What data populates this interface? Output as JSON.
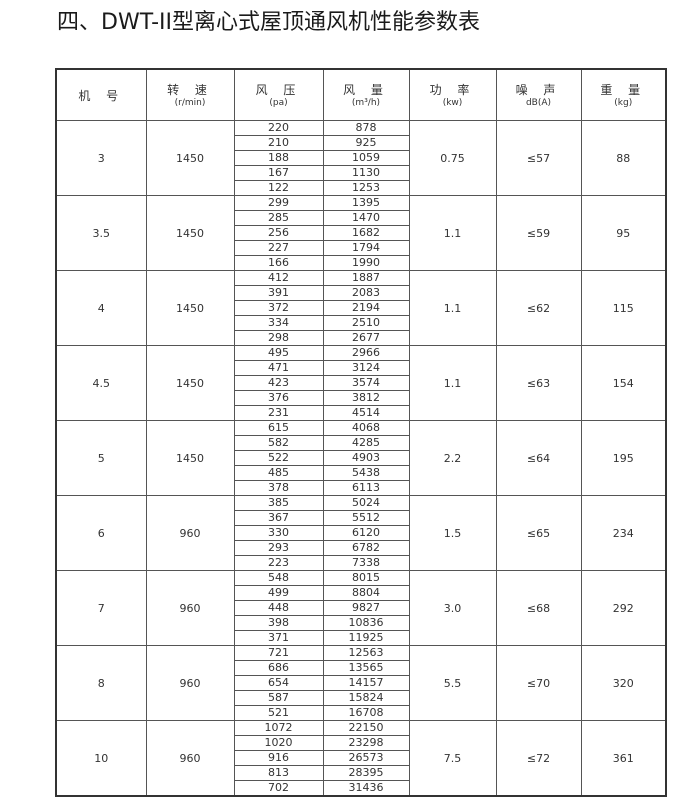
{
  "title": "四、DWT-II型离心式屋顶通风机性能参数表",
  "headers": [
    {
      "label": "机 号",
      "unit": ""
    },
    {
      "label": "转 速",
      "unit": "(r/min)"
    },
    {
      "label": "风 压",
      "unit": "(pa)"
    },
    {
      "label": "风 量",
      "unit": "(m³/h)"
    },
    {
      "label": "功 率",
      "unit": "(kw)"
    },
    {
      "label": "噪 声",
      "unit": "dB(A)"
    },
    {
      "label": "重 量",
      "unit": "(kg)"
    }
  ],
  "rows": [
    {
      "model": "3",
      "speed": "1450",
      "pressure": [
        "220",
        "210",
        "188",
        "167",
        "122"
      ],
      "flow": [
        "878",
        "925",
        "1059",
        "1130",
        "1253"
      ],
      "power": "0.75",
      "noise": "≤57",
      "weight": "88"
    },
    {
      "model": "3.5",
      "speed": "1450",
      "pressure": [
        "299",
        "285",
        "256",
        "227",
        "166"
      ],
      "flow": [
        "1395",
        "1470",
        "1682",
        "1794",
        "1990"
      ],
      "power": "1.1",
      "noise": "≤59",
      "weight": "95"
    },
    {
      "model": "4",
      "speed": "1450",
      "pressure": [
        "412",
        "391",
        "372",
        "334",
        "298"
      ],
      "flow": [
        "1887",
        "2083",
        "2194",
        "2510",
        "2677"
      ],
      "power": "1.1",
      "noise": "≤62",
      "weight": "115"
    },
    {
      "model": "4.5",
      "speed": "1450",
      "pressure": [
        "495",
        "471",
        "423",
        "376",
        "231"
      ],
      "flow": [
        "2966",
        "3124",
        "3574",
        "3812",
        "4514"
      ],
      "power": "1.1",
      "noise": "≤63",
      "weight": "154"
    },
    {
      "model": "5",
      "speed": "1450",
      "pressure": [
        "615",
        "582",
        "522",
        "485",
        "378"
      ],
      "flow": [
        "4068",
        "4285",
        "4903",
        "5438",
        "6113"
      ],
      "power": "2.2",
      "noise": "≤64",
      "weight": "195"
    },
    {
      "model": "6",
      "speed": "960",
      "pressure": [
        "385",
        "367",
        "330",
        "293",
        "223"
      ],
      "flow": [
        "5024",
        "5512",
        "6120",
        "6782",
        "7338"
      ],
      "power": "1.5",
      "noise": "≤65",
      "weight": "234"
    },
    {
      "model": "7",
      "speed": "960",
      "pressure": [
        "548",
        "499",
        "448",
        "398",
        "371"
      ],
      "flow": [
        "8015",
        "8804",
        "9827",
        "10836",
        "11925"
      ],
      "power": "3.0",
      "noise": "≤68",
      "weight": "292"
    },
    {
      "model": "8",
      "speed": "960",
      "pressure": [
        "721",
        "686",
        "654",
        "587",
        "521"
      ],
      "flow": [
        "12563",
        "13565",
        "14157",
        "15824",
        "16708"
      ],
      "power": "5.5",
      "noise": "≤70",
      "weight": "320"
    },
    {
      "model": "10",
      "speed": "960",
      "pressure": [
        "1072",
        "1020",
        "916",
        "813",
        "702"
      ],
      "flow": [
        "22150",
        "23298",
        "26573",
        "28395",
        "31436"
      ],
      "power": "7.5",
      "noise": "≤72",
      "weight": "361"
    }
  ]
}
